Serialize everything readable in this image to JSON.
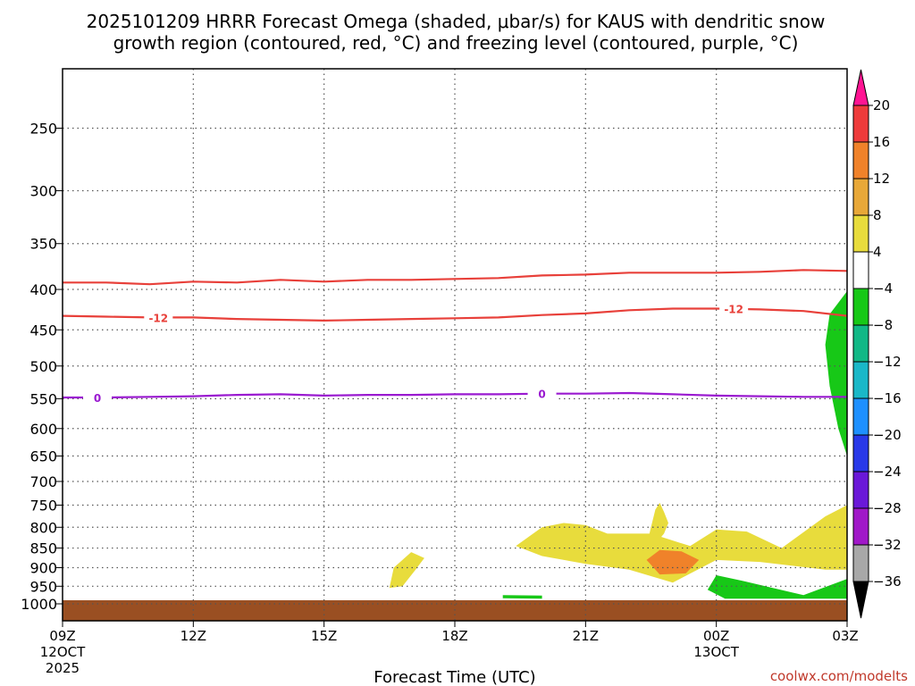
{
  "chart_data": {
    "type": "heatmap",
    "title_line1": "2025101209 HRRR Forecast Omega (shaded, μbar/s) for KAUS with dendritic snow",
    "title_line2": "growth region (contoured, red, °C) and freezing level (contoured, purple, °C)",
    "xlabel": "Forecast Time (UTC)",
    "credit": "coolwx.com/modelts",
    "x_ticks": [
      {
        "h": 0,
        "label": "09Z",
        "sub1": "12OCT",
        "sub2": "2025"
      },
      {
        "h": 3,
        "label": "12Z"
      },
      {
        "h": 6,
        "label": "15Z"
      },
      {
        "h": 9,
        "label": "18Z"
      },
      {
        "h": 12,
        "label": "21Z"
      },
      {
        "h": 15,
        "label": "00Z",
        "sub1": "13OCT"
      },
      {
        "h": 18,
        "label": "03Z"
      }
    ],
    "x_range_hours": [
      0,
      18
    ],
    "y_axis": "pressure (hPa), inverted",
    "y_ticks": [
      250,
      300,
      350,
      400,
      450,
      500,
      550,
      600,
      650,
      700,
      750,
      800,
      850,
      900,
      950,
      1000
    ],
    "grid": true,
    "colorbar": {
      "ticks": [
        20,
        16,
        12,
        8,
        4,
        -4,
        -8,
        -12,
        -16,
        -20,
        -24,
        -28,
        -32,
        -36
      ],
      "colors": [
        "#ff1493",
        "#ee3b3b",
        "#f0822a",
        "#e8a838",
        "#e8dc3c",
        "#ffffff",
        "#17c817",
        "#12b886",
        "#1ab8c8",
        "#1e90ff",
        "#2838e8",
        "#6a18d8",
        "#a018c8",
        "#a8a8a8",
        "#000000"
      ]
    },
    "contours": [
      {
        "value": -12,
        "label": "-12",
        "color": "#e8403a",
        "points": [
          [
            0,
            392
          ],
          [
            1,
            392
          ],
          [
            2,
            394
          ],
          [
            3,
            391
          ],
          [
            4,
            392
          ],
          [
            5,
            389
          ],
          [
            6,
            391
          ],
          [
            7,
            389
          ],
          [
            8,
            389
          ],
          [
            9,
            388
          ],
          [
            10,
            387
          ],
          [
            11,
            384
          ],
          [
            12,
            383
          ],
          [
            13,
            381
          ],
          [
            14,
            381
          ],
          [
            15,
            381
          ],
          [
            16,
            380
          ],
          [
            17,
            378
          ],
          [
            18,
            379
          ]
        ]
      },
      {
        "value": -12,
        "label": "-12",
        "color": "#e8403a",
        "points": [
          [
            0,
            432
          ],
          [
            1,
            433
          ],
          [
            2,
            434
          ],
          [
            3,
            434
          ],
          [
            4,
            436
          ],
          [
            5,
            437
          ],
          [
            6,
            438
          ],
          [
            7,
            437
          ],
          [
            8,
            436
          ],
          [
            9,
            435
          ],
          [
            10,
            434
          ],
          [
            11,
            431
          ],
          [
            12,
            429
          ],
          [
            13,
            425
          ],
          [
            14,
            423
          ],
          [
            15,
            423
          ],
          [
            16,
            424
          ],
          [
            17,
            426
          ],
          [
            18,
            432
          ]
        ]
      },
      {
        "value": 0,
        "label": "0",
        "color": "#9a1ad0",
        "points": [
          [
            0,
            548
          ],
          [
            1,
            548
          ],
          [
            2,
            547
          ],
          [
            3,
            546
          ],
          [
            4,
            544
          ],
          [
            5,
            543
          ],
          [
            6,
            545
          ],
          [
            7,
            544
          ],
          [
            8,
            544
          ],
          [
            9,
            543
          ],
          [
            10,
            543
          ],
          [
            11,
            542
          ],
          [
            12,
            542
          ],
          [
            13,
            541
          ],
          [
            14,
            543
          ],
          [
            15,
            545
          ],
          [
            16,
            546
          ],
          [
            17,
            547
          ],
          [
            18,
            547
          ]
        ]
      }
    ],
    "shaded_regions": [
      {
        "level": "-8 to -4",
        "color": "#17c817",
        "desc": "upper-right",
        "points": [
          [
            18,
            402
          ],
          [
            17.6,
            430
          ],
          [
            17.5,
            470
          ],
          [
            17.6,
            530
          ],
          [
            17.8,
            600
          ],
          [
            18,
            650
          ]
        ]
      },
      {
        "level": "4 to 8",
        "color": "#e8dc3c",
        "points": [
          [
            13.4,
            845
          ],
          [
            13.5,
            800
          ],
          [
            13.6,
            760
          ],
          [
            13.7,
            745
          ],
          [
            13.8,
            765
          ],
          [
            13.9,
            790
          ],
          [
            13.8,
            815
          ],
          [
            13.6,
            840
          ]
        ]
      },
      {
        "level": "4 to 8",
        "color": "#e8dc3c",
        "points": [
          [
            7.5,
            955
          ],
          [
            7.6,
            900
          ],
          [
            8,
            860
          ],
          [
            8.3,
            875
          ],
          [
            8.1,
            905
          ],
          [
            7.8,
            950
          ]
        ]
      },
      {
        "level": "4 to 8",
        "color": "#e8dc3c",
        "points": [
          [
            10.4,
            845
          ],
          [
            11,
            800
          ],
          [
            11.5,
            790
          ],
          [
            12,
            795
          ],
          [
            12.5,
            815
          ],
          [
            13.5,
            815
          ],
          [
            14.4,
            845
          ],
          [
            15,
            805
          ],
          [
            15.7,
            810
          ],
          [
            16.5,
            850
          ],
          [
            17.5,
            775
          ],
          [
            18,
            750
          ],
          [
            18,
            905
          ],
          [
            17.5,
            905
          ],
          [
            16,
            885
          ],
          [
            15,
            880
          ],
          [
            14,
            940
          ],
          [
            13,
            905
          ],
          [
            12,
            890
          ],
          [
            11,
            870
          ]
        ]
      },
      {
        "level": "8 to 16",
        "color": "#f0822a",
        "points": [
          [
            13.4,
            880
          ],
          [
            13.7,
            855
          ],
          [
            14.2,
            858
          ],
          [
            14.6,
            880
          ],
          [
            14.3,
            915
          ],
          [
            13.7,
            918
          ]
        ]
      },
      {
        "level": "-8 to -4",
        "color": "#17c817",
        "points": [
          [
            14.8,
            960
          ],
          [
            15,
            920
          ],
          [
            15.6,
            935
          ],
          [
            17,
            975
          ],
          [
            18,
            930
          ],
          [
            18,
            985
          ],
          [
            15.2,
            985
          ]
        ]
      },
      {
        "level": "-8 to -4",
        "color": "#17c817",
        "points": [
          [
            10.1,
            975
          ],
          [
            11,
            976
          ],
          [
            11,
            985
          ],
          [
            10.1,
            984
          ]
        ]
      }
    ],
    "surface_band": "#9a4f22"
  }
}
